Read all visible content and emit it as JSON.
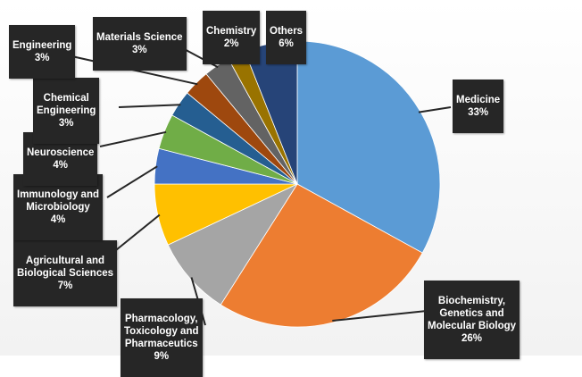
{
  "chart_data": {
    "type": "pie",
    "title": "",
    "slices": [
      {
        "name": "Medicine",
        "label": "Medicine",
        "value_label": "33%",
        "value": 33,
        "color": "#5b9bd5"
      },
      {
        "name": "Biochemistry, Genetics and Molecular Biology",
        "label": "Biochemistry,\nGenetics and\nMolecular Biology",
        "value_label": "26%",
        "value": 26,
        "color": "#ed7d31"
      },
      {
        "name": "Pharmacology, Toxicology and Pharmaceutics",
        "label": "Pharmacology,\nToxicology and\nPharmaceutics",
        "value_label": "9%",
        "value": 9,
        "color": "#a5a5a5"
      },
      {
        "name": "Agricultural and Biological Sciences",
        "label": "Agricultural and\nBiological Sciences",
        "value_label": "7%",
        "value": 7,
        "color": "#ffc000"
      },
      {
        "name": "Immunology and Microbiology",
        "label": "Immunology and\nMicrobiology",
        "value_label": "4%",
        "value": 4,
        "color": "#4472c4"
      },
      {
        "name": "Neuroscience",
        "label": "Neuroscience",
        "value_label": "4%",
        "value": 4,
        "color": "#70ad47"
      },
      {
        "name": "Chemical Engineering",
        "label": "Chemical\nEngineering",
        "value_label": "3%",
        "value": 3,
        "color": "#255e91"
      },
      {
        "name": "Engineering",
        "label": "Engineering",
        "value_label": "3%",
        "value": 3,
        "color": "#9e480e"
      },
      {
        "name": "Materials Science",
        "label": "Materials Science",
        "value_label": "3%",
        "value": 3,
        "color": "#636363"
      },
      {
        "name": "Chemistry",
        "label": "Chemistry",
        "value_label": "2%",
        "value": 2,
        "color": "#997300"
      },
      {
        "name": "Others",
        "label": "Others",
        "value_label": "6%",
        "value": 6,
        "color": "#264478"
      }
    ]
  }
}
